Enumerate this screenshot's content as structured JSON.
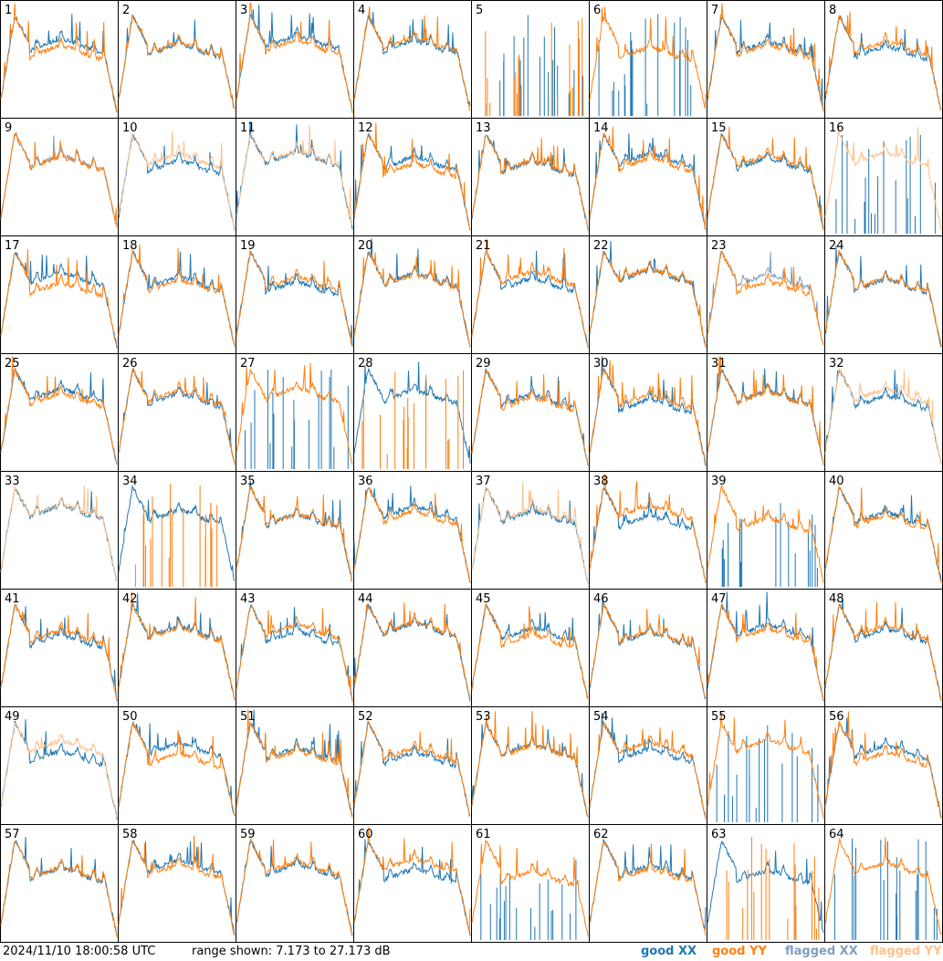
{
  "chart_data": {
    "type": "line",
    "grid_layout": "8x8",
    "panel_count": 64,
    "panel_labels": [
      "1",
      "2",
      "3",
      "4",
      "5",
      "6",
      "7",
      "8",
      "9",
      "10",
      "11",
      "12",
      "13",
      "14",
      "15",
      "16",
      "17",
      "18",
      "19",
      "20",
      "21",
      "22",
      "23",
      "24",
      "25",
      "26",
      "27",
      "28",
      "29",
      "30",
      "31",
      "32",
      "33",
      "34",
      "35",
      "36",
      "37",
      "38",
      "39",
      "40",
      "41",
      "42",
      "43",
      "44",
      "45",
      "46",
      "47",
      "48",
      "49",
      "50",
      "51",
      "52",
      "53",
      "54",
      "55",
      "56",
      "57",
      "58",
      "59",
      "60",
      "61",
      "62",
      "63",
      "64"
    ],
    "ylim_db": [
      7.173,
      27.173
    ],
    "series": [
      {
        "name": "good XX",
        "color": "#1f77b4"
      },
      {
        "name": "good YY",
        "color": "#ff7f0e"
      },
      {
        "name": "flagged XX",
        "color": "#7f9fbf"
      },
      {
        "name": "flagged YY",
        "color": "#ffc08a"
      }
    ],
    "panel_status": {
      "xx_flagged": [
        9,
        23
      ],
      "yy_flagged": [
        10,
        11,
        16,
        32,
        33,
        37,
        49
      ],
      "xx_broken": [
        5,
        6,
        16,
        27,
        39,
        55,
        61,
        64
      ],
      "yy_broken": [
        5,
        28,
        34,
        63
      ]
    }
  },
  "footer": {
    "timestamp": "2024/11/10 18:00:58 UTC",
    "range_text": "range shown: 7.173 to 27.173 dB"
  },
  "legend": [
    {
      "label": "good XX",
      "color": "#1f77b4"
    },
    {
      "label": "good YY",
      "color": "#ff7f0e"
    },
    {
      "label": "flagged XX",
      "color": "#7f9fbf"
    },
    {
      "label": "flagged YY",
      "color": "#ffc08a"
    }
  ]
}
